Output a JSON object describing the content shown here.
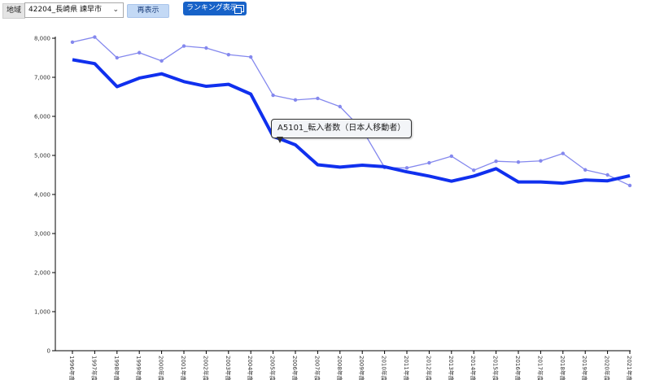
{
  "toolbar": {
    "region_label": "地域",
    "region_value": "42204_長崎県 諫早市",
    "redisplay_label": "再表示",
    "ranking_label": "ランキング表示"
  },
  "tooltip": {
    "text": "A5101_転入者数（日本人移動者）"
  },
  "colors": {
    "primary": "#1030ee",
    "secondary": "#8488ee"
  },
  "chart_data": {
    "type": "line",
    "categories": [
      "1996年度",
      "1997年度",
      "1998年度",
      "1999年度",
      "2000年度",
      "2001年度",
      "2002年度",
      "2003年度",
      "2004年度",
      "2005年度",
      "2006年度",
      "2007年度",
      "2008年度",
      "2009年度",
      "2010年度",
      "2011年度",
      "2012年度",
      "2013年度",
      "2014年度",
      "2015年度",
      "2016年度",
      "2017年度",
      "2018年度",
      "2019年度",
      "2020年度",
      "2021年度"
    ],
    "series": [
      {
        "name": "A5101_転入者数（日本人移動者）",
        "color": "#1030ee",
        "values": [
          7450,
          7350,
          6760,
          6980,
          7090,
          6890,
          6770,
          6820,
          6570,
          5490,
          5270,
          4760,
          4700,
          4750,
          4710,
          4580,
          4470,
          4340,
          4470,
          4660,
          4320,
          4320,
          4290,
          4370,
          4350,
          4480
        ]
      },
      {
        "color": "#8488ee",
        "values": [
          7900,
          8030,
          7500,
          7630,
          7420,
          7800,
          7750,
          7580,
          7520,
          6540,
          6420,
          6460,
          6250,
          5660,
          4690,
          4680,
          4810,
          4980,
          4620,
          4850,
          4830,
          4860,
          5050,
          4630,
          4500,
          4230
        ]
      }
    ],
    "ylim": [
      0,
      8000
    ],
    "yticks": [
      "0",
      "1,000",
      "2,000",
      "3,000",
      "4,000",
      "5,000",
      "6,000",
      "7,000",
      "8,000"
    ],
    "grid": false
  }
}
